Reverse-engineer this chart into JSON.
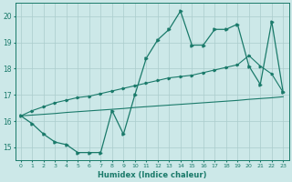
{
  "x": [
    0,
    1,
    2,
    3,
    4,
    5,
    6,
    7,
    8,
    9,
    10,
    11,
    12,
    13,
    14,
    15,
    16,
    17,
    18,
    19,
    20,
    21,
    22,
    23
  ],
  "y_main": [
    16.2,
    15.9,
    15.5,
    15.2,
    15.1,
    14.8,
    14.8,
    14.8,
    16.4,
    15.5,
    17.0,
    18.4,
    19.1,
    19.5,
    20.2,
    18.9,
    18.9,
    19.5,
    19.5,
    19.7,
    18.1,
    17.4,
    19.8,
    17.1
  ],
  "y_trend_upper": [
    16.2,
    16.4,
    16.55,
    16.7,
    16.8,
    16.9,
    16.95,
    17.05,
    17.15,
    17.25,
    17.35,
    17.45,
    17.55,
    17.65,
    17.7,
    17.75,
    17.85,
    17.95,
    18.05,
    18.15,
    18.5,
    18.1,
    17.8,
    17.1
  ],
  "y_trend_lower": [
    16.2,
    16.23,
    16.26,
    16.29,
    16.33,
    16.36,
    16.39,
    16.42,
    16.45,
    16.48,
    16.52,
    16.55,
    16.58,
    16.61,
    16.64,
    16.67,
    16.7,
    16.73,
    16.76,
    16.79,
    16.83,
    16.86,
    16.89,
    16.93
  ],
  "line_color": "#1a7a6a",
  "bg_color": "#cce8e8",
  "grid_color": "#aacccc",
  "xlabel": "Humidex (Indice chaleur)",
  "ylim": [
    14.5,
    20.5
  ],
  "xlim": [
    -0.5,
    23.5
  ],
  "yticks": [
    15,
    16,
    17,
    18,
    19,
    20
  ],
  "xticks": [
    0,
    1,
    2,
    3,
    4,
    5,
    6,
    7,
    8,
    9,
    10,
    11,
    12,
    13,
    14,
    15,
    16,
    17,
    18,
    19,
    20,
    21,
    22,
    23
  ]
}
